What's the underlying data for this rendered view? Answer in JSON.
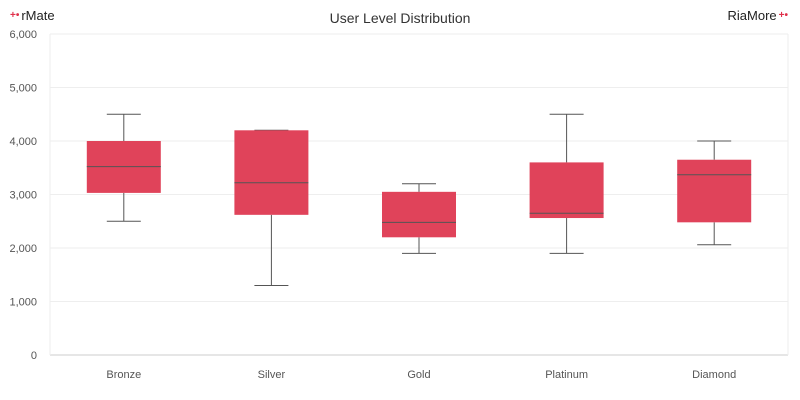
{
  "header": {
    "title": "User Level Distribution",
    "logo_left": "rMate",
    "logo_right": "RiaMore",
    "logo_mark": "+•"
  },
  "colors": {
    "box_fill": "#e0435a",
    "whisker": "#555555",
    "grid": "#eeeeee",
    "axis": "#cccccc"
  },
  "chart_data": {
    "type": "boxplot",
    "title": "User Level Distribution",
    "categories": [
      "Bronze",
      "Silver",
      "Gold",
      "Platinum",
      "Diamond"
    ],
    "series": [
      {
        "values": [
          {
            "min": 2500,
            "q1": 3030,
            "median": 3520,
            "q3": 4000,
            "max": 4500
          },
          {
            "min": 1300,
            "q1": 2620,
            "median": 3220,
            "q3": 4200,
            "max": 4200
          },
          {
            "min": 1900,
            "q1": 2200,
            "median": 2480,
            "q3": 3050,
            "max": 3200
          },
          {
            "min": 1900,
            "q1": 2560,
            "median": 2650,
            "q3": 3600,
            "max": 4500
          },
          {
            "min": 2060,
            "q1": 2480,
            "median": 3370,
            "q3": 3650,
            "max": 4000
          }
        ]
      }
    ],
    "ylim": [
      0,
      6000
    ],
    "yticks": [
      "0",
      "1,000",
      "2,000",
      "3,000",
      "4,000",
      "5,000",
      "6,000"
    ],
    "ytick_values": [
      0,
      1000,
      2000,
      3000,
      4000,
      5000,
      6000
    ],
    "grid": true,
    "legend": "none"
  }
}
